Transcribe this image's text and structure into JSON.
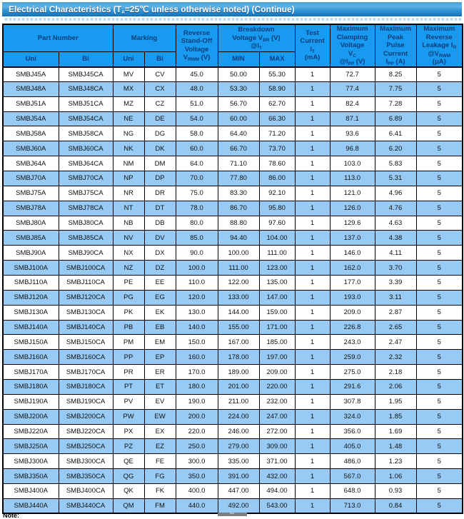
{
  "title": "Electrical Characteristics   (T~A~=25℃  unless otherwise noted) (Continue)",
  "colors": {
    "title_bar_top": "#46a2dc",
    "title_bar_bottom": "#1571b5",
    "header_bg": "#189af0",
    "header_text": "#0a3e7a",
    "row_alt_blue": "#97cbf5",
    "border": "#000000"
  },
  "table": {
    "header": {
      "part_number": "Part Number",
      "marking": "Marking",
      "uni": "Uni",
      "bi": "Bi",
      "reverse_standoff": "Reverse\nStand-Off\nVoltage\nV~RWM~ (V)",
      "breakdown": "Breakdown\nVoltage V~BR~  (V)\n@I~T~",
      "min": "MIN",
      "max": "MAX",
      "test_current": "Test\nCurrent\nI~T~\n(mA)",
      "max_clamping": "Maximum\nClamping\nVoltage\nV~C~\n@I~PP~ (V)",
      "max_peak_pulse": "Maximum\nPeak\nPulse\nCurrent\nI~PP~ (A)",
      "max_reverse_leakage": "Maximum\nReverse\nLeakage I~R~\n@V~RWM~\n(μA)"
    },
    "rows": [
      [
        "SMBJ45A",
        "SMBJ45CA",
        "MV",
        "CV",
        "45.0",
        "50.00",
        "55.30",
        "1",
        "72.7",
        "8.25",
        "5"
      ],
      [
        "SMBJ48A",
        "SMBJ48CA",
        "MX",
        "CX",
        "48.0",
        "53.30",
        "58.90",
        "1",
        "77.4",
        "7.75",
        "5"
      ],
      [
        "SMBJ51A",
        "SMBJ51CA",
        "MZ",
        "CZ",
        "51.0",
        "56.70",
        "62.70",
        "1",
        "82.4",
        "7.28",
        "5"
      ],
      [
        "SMBJ54A",
        "SMBJ54CA",
        "NE",
        "DE",
        "54.0",
        "60.00",
        "66.30",
        "1",
        "87.1",
        "6.89",
        "5"
      ],
      [
        "SMBJ58A",
        "SMBJ58CA",
        "NG",
        "DG",
        "58.0",
        "64.40",
        "71.20",
        "1",
        "93.6",
        "6.41",
        "5"
      ],
      [
        "SMBJ60A",
        "SMBJ60CA",
        "NK",
        "DK",
        "60.0",
        "66.70",
        "73.70",
        "1",
        "96.8",
        "6.20",
        "5"
      ],
      [
        "SMBJ64A",
        "SMBJ64CA",
        "NM",
        "DM",
        "64.0",
        "71.10",
        "78.60",
        "1",
        "103.0",
        "5.83",
        "5"
      ],
      [
        "SMBJ70A",
        "SMBJ70CA",
        "NP",
        "DP",
        "70.0",
        "77.80",
        "86.00",
        "1",
        "113.0",
        "5.31",
        "5"
      ],
      [
        "SMBJ75A",
        "SMBJ75CA",
        "NR",
        "DR",
        "75.0",
        "83.30",
        "92.10",
        "1",
        "121.0",
        "4.96",
        "5"
      ],
      [
        "SMBJ78A",
        "SMBJ78CA",
        "NT",
        "DT",
        "78.0",
        "86.70",
        "95.80",
        "1",
        "126.0",
        "4.76",
        "5"
      ],
      [
        "SMBJ80A",
        "SMBJ80CA",
        "NB",
        "DB",
        "80.0",
        "88.80",
        "97.60",
        "1",
        "129.6",
        "4.63",
        "5"
      ],
      [
        "SMBJ85A",
        "SMBJ85CA",
        "NV",
        "DV",
        "85.0",
        "94.40",
        "104.00",
        "1",
        "137.0",
        "4.38",
        "5"
      ],
      [
        "SMBJ90A",
        "SMBJ90CA",
        "NX",
        "DX",
        "90.0",
        "100.00",
        "111.00",
        "1",
        "146.0",
        "4.11",
        "5"
      ],
      [
        "SMBJ100A",
        "SMBJ100CA",
        "NZ",
        "DZ",
        "100.0",
        "111.00",
        "123.00",
        "1",
        "162.0",
        "3.70",
        "5"
      ],
      [
        "SMBJ110A",
        "SMBJ110CA",
        "PE",
        "EE",
        "110.0",
        "122.00",
        "135.00",
        "1",
        "177.0",
        "3.39",
        "5"
      ],
      [
        "SMBJ120A",
        "SMBJ120CA",
        "PG",
        "EG",
        "120.0",
        "133.00",
        "147.00",
        "1",
        "193.0",
        "3.11",
        "5"
      ],
      [
        "SMBJ130A",
        "SMBJ130CA",
        "PK",
        "EK",
        "130.0",
        "144.00",
        "159.00",
        "1",
        "209.0",
        "2.87",
        "5"
      ],
      [
        "SMBJ140A",
        "SMBJ140CA",
        "PB",
        "EB",
        "140.0",
        "155.00",
        "171.00",
        "1",
        "226.8",
        "2.65",
        "5"
      ],
      [
        "SMBJ150A",
        "SMBJ150CA",
        "PM",
        "EM",
        "150.0",
        "167.00",
        "185.00",
        "1",
        "243.0",
        "2.47",
        "5"
      ],
      [
        "SMBJ160A",
        "SMBJ160CA",
        "PP",
        "EP",
        "160.0",
        "178.00",
        "197.00",
        "1",
        "259.0",
        "2.32",
        "5"
      ],
      [
        "SMBJ170A",
        "SMBJ170CA",
        "PR",
        "ER",
        "170.0",
        "189.00",
        "209.00",
        "1",
        "275.0",
        "2.18",
        "5"
      ],
      [
        "SMBJ180A",
        "SMBJ180CA",
        "PT",
        "ET",
        "180.0",
        "201.00",
        "220.00",
        "1",
        "291.6",
        "2.06",
        "5"
      ],
      [
        "SMBJ190A",
        "SMBJ190CA",
        "PV",
        "EV",
        "190.0",
        "211.00",
        "232.00",
        "1",
        "307.8",
        "1.95",
        "5"
      ],
      [
        "SMBJ200A",
        "SMBJ200CA",
        "PW",
        "EW",
        "200.0",
        "224.00",
        "247.00",
        "1",
        "324.0",
        "1.85",
        "5"
      ],
      [
        "SMBJ220A",
        "SMBJ220CA",
        "PX",
        "EX",
        "220.0",
        "246.00",
        "272.00",
        "1",
        "356.0",
        "1.69",
        "5"
      ],
      [
        "SMBJ250A",
        "SMBJ250CA",
        "PZ",
        "EZ",
        "250.0",
        "279.00",
        "309.00",
        "1",
        "405.0",
        "1.48",
        "5"
      ],
      [
        "SMBJ300A",
        "SMBJ300CA",
        "QE",
        "FE",
        "300.0",
        "335.00",
        "371.00",
        "1",
        "486.0",
        "1.23",
        "5"
      ],
      [
        "SMBJ350A",
        "SMBJ350CA",
        "QG",
        "FG",
        "350.0",
        "391.00",
        "432.00",
        "1",
        "567.0",
        "1.06",
        "5"
      ],
      [
        "SMBJ400A",
        "SMBJ400CA",
        "QK",
        "FK",
        "400.0",
        "447.00",
        "494.00",
        "1",
        "648.0",
        "0.93",
        "5"
      ],
      [
        "SMBJ440A",
        "SMBJ440CA",
        "QM",
        "FM",
        "440.0",
        "492.00",
        "543.00",
        "1",
        "713.0",
        "0.84",
        "5"
      ]
    ]
  },
  "footer": {
    "note_label": "Note:"
  }
}
